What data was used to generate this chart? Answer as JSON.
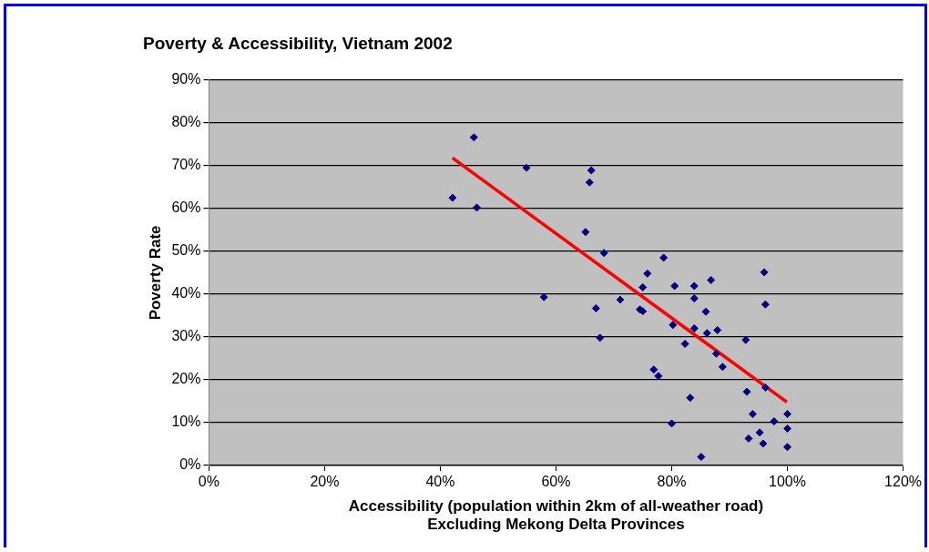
{
  "chart_data": {
    "type": "scatter",
    "title": "Poverty & Accessibility, Vietnam 2002",
    "xlabel": "Accessibility (population within 2km of all-weather road)\nExcluding Mekong Delta Provinces",
    "ylabel": "Poverty Rate",
    "xlim": [
      0,
      120
    ],
    "xticks": [
      {
        "value": 0,
        "label": "0%"
      },
      {
        "value": 20,
        "label": "20%"
      },
      {
        "value": 40,
        "label": "40%"
      },
      {
        "value": 60,
        "label": "60%"
      },
      {
        "value": 80,
        "label": "80%"
      },
      {
        "value": 100,
        "label": "100%"
      },
      {
        "value": 120,
        "label": "120%"
      }
    ],
    "ylim": [
      0,
      90
    ],
    "yticks": [
      {
        "value": 0,
        "label": "0%"
      },
      {
        "value": 10,
        "label": "10%"
      },
      {
        "value": 20,
        "label": "20%"
      },
      {
        "value": 30,
        "label": "30%"
      },
      {
        "value": 40,
        "label": "40%"
      },
      {
        "value": 50,
        "label": "50%"
      },
      {
        "value": 60,
        "label": "60%"
      },
      {
        "value": 70,
        "label": "70%"
      },
      {
        "value": 80,
        "label": "80%"
      },
      {
        "value": 90,
        "label": "90%"
      }
    ],
    "grid": "y",
    "legend": false,
    "marker": "diamond",
    "series": [
      {
        "color": "#000080",
        "x": [
          45.8,
          54.9,
          66.1,
          65.8,
          42.1,
          46.3,
          65.1,
          68.3,
          78.6,
          75.8,
          75.0,
          57.9,
          71.1,
          66.9,
          74.5,
          75.0,
          67.6,
          76.9,
          77.7,
          80.5,
          83.9,
          86.8,
          96.0,
          83.9,
          85.9,
          96.2,
          80.2,
          83.9,
          86.1,
          87.9,
          92.8,
          82.3,
          87.7,
          88.8,
          93.0,
          96.2,
          83.2,
          94.0,
          100,
          97.7,
          80.0,
          100,
          95.2,
          93.3,
          95.8,
          100,
          85.1
        ],
        "values": [
          76.6,
          69.5,
          68.9,
          66.1,
          62.5,
          60.2,
          54.5,
          49.6,
          48.5,
          44.8,
          41.6,
          39.3,
          38.7,
          36.7,
          36.4,
          36.0,
          29.8,
          22.4,
          20.9,
          41.9,
          41.9,
          43.3,
          45.1,
          39.0,
          35.9,
          37.6,
          32.8,
          32.0,
          30.9,
          31.6,
          29.3,
          28.4,
          26.1,
          23.0,
          17.2,
          18.2,
          15.8,
          12.0,
          12.0,
          10.3,
          9.8,
          8.6,
          7.7,
          6.3,
          5.1,
          4.3,
          2.0
        ]
      },
      {
        "type": "line",
        "color": "#ff0000",
        "marker": "none",
        "line_style": "solid",
        "x": [
          42.1,
          99.9
        ],
        "values": [
          71.8,
          14.8
        ]
      }
    ]
  }
}
